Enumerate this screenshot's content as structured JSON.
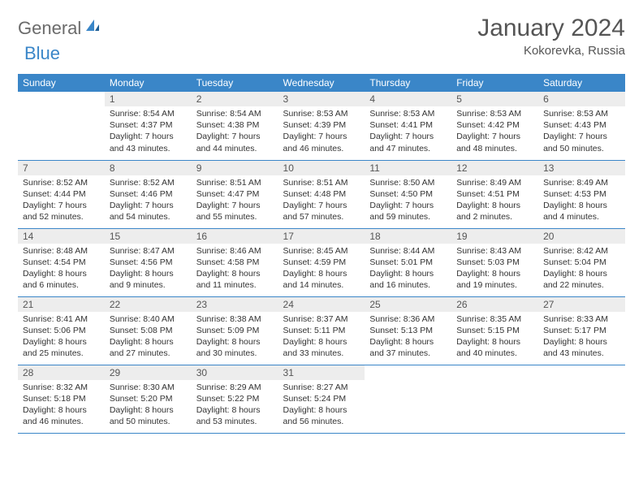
{
  "brand": {
    "word1": "General",
    "word2": "Blue"
  },
  "title": "January 2024",
  "location": "Kokorevka, Russia",
  "colors": {
    "header_bg": "#3a86c8",
    "header_text": "#ffffff",
    "daynum_bg": "#ededed",
    "row_border": "#3a86c8",
    "logo_gray": "#6b6b6b",
    "logo_blue": "#3a86c8",
    "body_text": "#333333"
  },
  "weekdays": [
    "Sunday",
    "Monday",
    "Tuesday",
    "Wednesday",
    "Thursday",
    "Friday",
    "Saturday"
  ],
  "weeks": [
    [
      {
        "n": "",
        "sr": "",
        "ss": "",
        "dl": ""
      },
      {
        "n": "1",
        "sr": "Sunrise: 8:54 AM",
        "ss": "Sunset: 4:37 PM",
        "dl": "Daylight: 7 hours and 43 minutes."
      },
      {
        "n": "2",
        "sr": "Sunrise: 8:54 AM",
        "ss": "Sunset: 4:38 PM",
        "dl": "Daylight: 7 hours and 44 minutes."
      },
      {
        "n": "3",
        "sr": "Sunrise: 8:53 AM",
        "ss": "Sunset: 4:39 PM",
        "dl": "Daylight: 7 hours and 46 minutes."
      },
      {
        "n": "4",
        "sr": "Sunrise: 8:53 AM",
        "ss": "Sunset: 4:41 PM",
        "dl": "Daylight: 7 hours and 47 minutes."
      },
      {
        "n": "5",
        "sr": "Sunrise: 8:53 AM",
        "ss": "Sunset: 4:42 PM",
        "dl": "Daylight: 7 hours and 48 minutes."
      },
      {
        "n": "6",
        "sr": "Sunrise: 8:53 AM",
        "ss": "Sunset: 4:43 PM",
        "dl": "Daylight: 7 hours and 50 minutes."
      }
    ],
    [
      {
        "n": "7",
        "sr": "Sunrise: 8:52 AM",
        "ss": "Sunset: 4:44 PM",
        "dl": "Daylight: 7 hours and 52 minutes."
      },
      {
        "n": "8",
        "sr": "Sunrise: 8:52 AM",
        "ss": "Sunset: 4:46 PM",
        "dl": "Daylight: 7 hours and 54 minutes."
      },
      {
        "n": "9",
        "sr": "Sunrise: 8:51 AM",
        "ss": "Sunset: 4:47 PM",
        "dl": "Daylight: 7 hours and 55 minutes."
      },
      {
        "n": "10",
        "sr": "Sunrise: 8:51 AM",
        "ss": "Sunset: 4:48 PM",
        "dl": "Daylight: 7 hours and 57 minutes."
      },
      {
        "n": "11",
        "sr": "Sunrise: 8:50 AM",
        "ss": "Sunset: 4:50 PM",
        "dl": "Daylight: 7 hours and 59 minutes."
      },
      {
        "n": "12",
        "sr": "Sunrise: 8:49 AM",
        "ss": "Sunset: 4:51 PM",
        "dl": "Daylight: 8 hours and 2 minutes."
      },
      {
        "n": "13",
        "sr": "Sunrise: 8:49 AM",
        "ss": "Sunset: 4:53 PM",
        "dl": "Daylight: 8 hours and 4 minutes."
      }
    ],
    [
      {
        "n": "14",
        "sr": "Sunrise: 8:48 AM",
        "ss": "Sunset: 4:54 PM",
        "dl": "Daylight: 8 hours and 6 minutes."
      },
      {
        "n": "15",
        "sr": "Sunrise: 8:47 AM",
        "ss": "Sunset: 4:56 PM",
        "dl": "Daylight: 8 hours and 9 minutes."
      },
      {
        "n": "16",
        "sr": "Sunrise: 8:46 AM",
        "ss": "Sunset: 4:58 PM",
        "dl": "Daylight: 8 hours and 11 minutes."
      },
      {
        "n": "17",
        "sr": "Sunrise: 8:45 AM",
        "ss": "Sunset: 4:59 PM",
        "dl": "Daylight: 8 hours and 14 minutes."
      },
      {
        "n": "18",
        "sr": "Sunrise: 8:44 AM",
        "ss": "Sunset: 5:01 PM",
        "dl": "Daylight: 8 hours and 16 minutes."
      },
      {
        "n": "19",
        "sr": "Sunrise: 8:43 AM",
        "ss": "Sunset: 5:03 PM",
        "dl": "Daylight: 8 hours and 19 minutes."
      },
      {
        "n": "20",
        "sr": "Sunrise: 8:42 AM",
        "ss": "Sunset: 5:04 PM",
        "dl": "Daylight: 8 hours and 22 minutes."
      }
    ],
    [
      {
        "n": "21",
        "sr": "Sunrise: 8:41 AM",
        "ss": "Sunset: 5:06 PM",
        "dl": "Daylight: 8 hours and 25 minutes."
      },
      {
        "n": "22",
        "sr": "Sunrise: 8:40 AM",
        "ss": "Sunset: 5:08 PM",
        "dl": "Daylight: 8 hours and 27 minutes."
      },
      {
        "n": "23",
        "sr": "Sunrise: 8:38 AM",
        "ss": "Sunset: 5:09 PM",
        "dl": "Daylight: 8 hours and 30 minutes."
      },
      {
        "n": "24",
        "sr": "Sunrise: 8:37 AM",
        "ss": "Sunset: 5:11 PM",
        "dl": "Daylight: 8 hours and 33 minutes."
      },
      {
        "n": "25",
        "sr": "Sunrise: 8:36 AM",
        "ss": "Sunset: 5:13 PM",
        "dl": "Daylight: 8 hours and 37 minutes."
      },
      {
        "n": "26",
        "sr": "Sunrise: 8:35 AM",
        "ss": "Sunset: 5:15 PM",
        "dl": "Daylight: 8 hours and 40 minutes."
      },
      {
        "n": "27",
        "sr": "Sunrise: 8:33 AM",
        "ss": "Sunset: 5:17 PM",
        "dl": "Daylight: 8 hours and 43 minutes."
      }
    ],
    [
      {
        "n": "28",
        "sr": "Sunrise: 8:32 AM",
        "ss": "Sunset: 5:18 PM",
        "dl": "Daylight: 8 hours and 46 minutes."
      },
      {
        "n": "29",
        "sr": "Sunrise: 8:30 AM",
        "ss": "Sunset: 5:20 PM",
        "dl": "Daylight: 8 hours and 50 minutes."
      },
      {
        "n": "30",
        "sr": "Sunrise: 8:29 AM",
        "ss": "Sunset: 5:22 PM",
        "dl": "Daylight: 8 hours and 53 minutes."
      },
      {
        "n": "31",
        "sr": "Sunrise: 8:27 AM",
        "ss": "Sunset: 5:24 PM",
        "dl": "Daylight: 8 hours and 56 minutes."
      },
      {
        "n": "",
        "sr": "",
        "ss": "",
        "dl": ""
      },
      {
        "n": "",
        "sr": "",
        "ss": "",
        "dl": ""
      },
      {
        "n": "",
        "sr": "",
        "ss": "",
        "dl": ""
      }
    ]
  ]
}
